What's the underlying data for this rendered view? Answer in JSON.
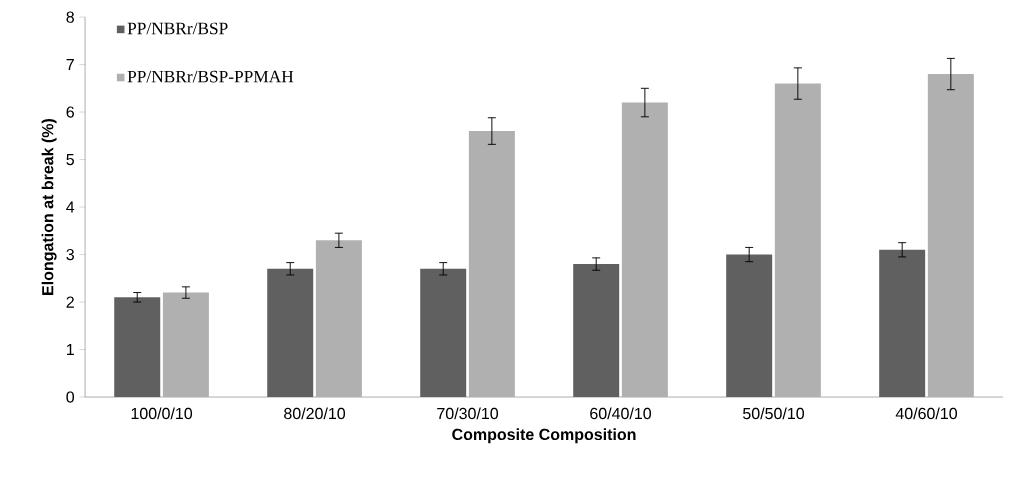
{
  "chart_data": {
    "type": "bar",
    "xlabel": "Composite Composition",
    "ylabel": "Elongation at break (%)",
    "categories": [
      "100/0/10",
      "80/20/10",
      "70/30/10",
      "60/40/10",
      "50/50/10",
      "40/60/10"
    ],
    "series": [
      {
        "name": "PP/NBRr/BSP",
        "color": "#606060",
        "values": [
          2.1,
          2.7,
          2.7,
          2.8,
          3.0,
          3.1
        ],
        "errors": [
          0.1,
          0.13,
          0.13,
          0.13,
          0.15,
          0.15
        ]
      },
      {
        "name": "PP/NBRr/BSP-PPMAH",
        "color": "#b0b0b0",
        "values": [
          2.2,
          3.3,
          5.6,
          6.2,
          6.6,
          6.8
        ],
        "errors": [
          0.12,
          0.15,
          0.28,
          0.3,
          0.33,
          0.33
        ]
      }
    ],
    "ylim": [
      0,
      8
    ],
    "yticks": [
      0,
      1,
      2,
      3,
      4,
      5,
      6,
      7,
      8
    ],
    "grid": false,
    "legend": "top left"
  }
}
